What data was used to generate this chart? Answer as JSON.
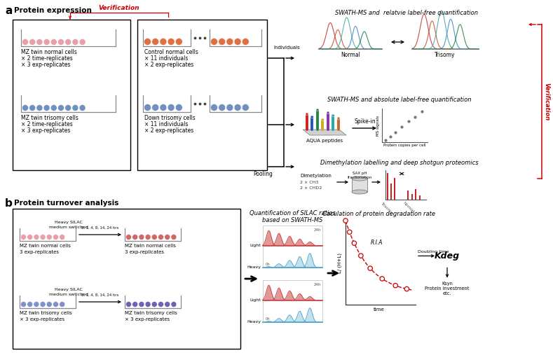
{
  "fig_width": 7.89,
  "fig_height": 5.14,
  "background_color": "#ffffff",
  "panel_a_label": "a",
  "panel_b_label": "b",
  "panel_a_title": "Protein expression",
  "panel_b_title": "Protein turnover analysis",
  "verification_text": "Verification",
  "verification_color": "#cc0000",
  "swath_title1": "SWATH-MS and  relatvie label-free quantification",
  "swath_title2": "SWATH-MS and absolute label-free quantification",
  "dimethyl_title": "Dimethylation labelling and deep shotgun proteomics",
  "silac_title": "Quantification of SILAC ratios\nbased on SWATH-MS",
  "degradation_title": "Caculation of protein degradation rate",
  "normal_label": "Normal",
  "trisomy_label": "Trisomy",
  "aqua_label": "AQUA peptides",
  "spikein_label": "Spike-in",
  "ms_signals_label": "MS signals",
  "protein_copies_label": "Protein copies per cell",
  "individuals_label": "Individuals",
  "pooling_label": "Pooling",
  "dimethylation_label": "Dimetylation",
  "sax_label": "SAX pH\nfractionation",
  "ch3_label": "2 × CH3",
  "chd2_label": "2 × CHD2",
  "ria_label": "R.I.A",
  "doubling_time_label": "Doubling time",
  "kdeg_label": "Kdeg",
  "ksyn_label": "Ksyn\nProtein investment\netc.",
  "time_label": "time",
  "y_ria_label": "L/ (H+L)",
  "pink_color": "#e8a0a8",
  "blue_color": "#7090c0",
  "orange_color": "#e07040",
  "purple_color": "#8070b8"
}
